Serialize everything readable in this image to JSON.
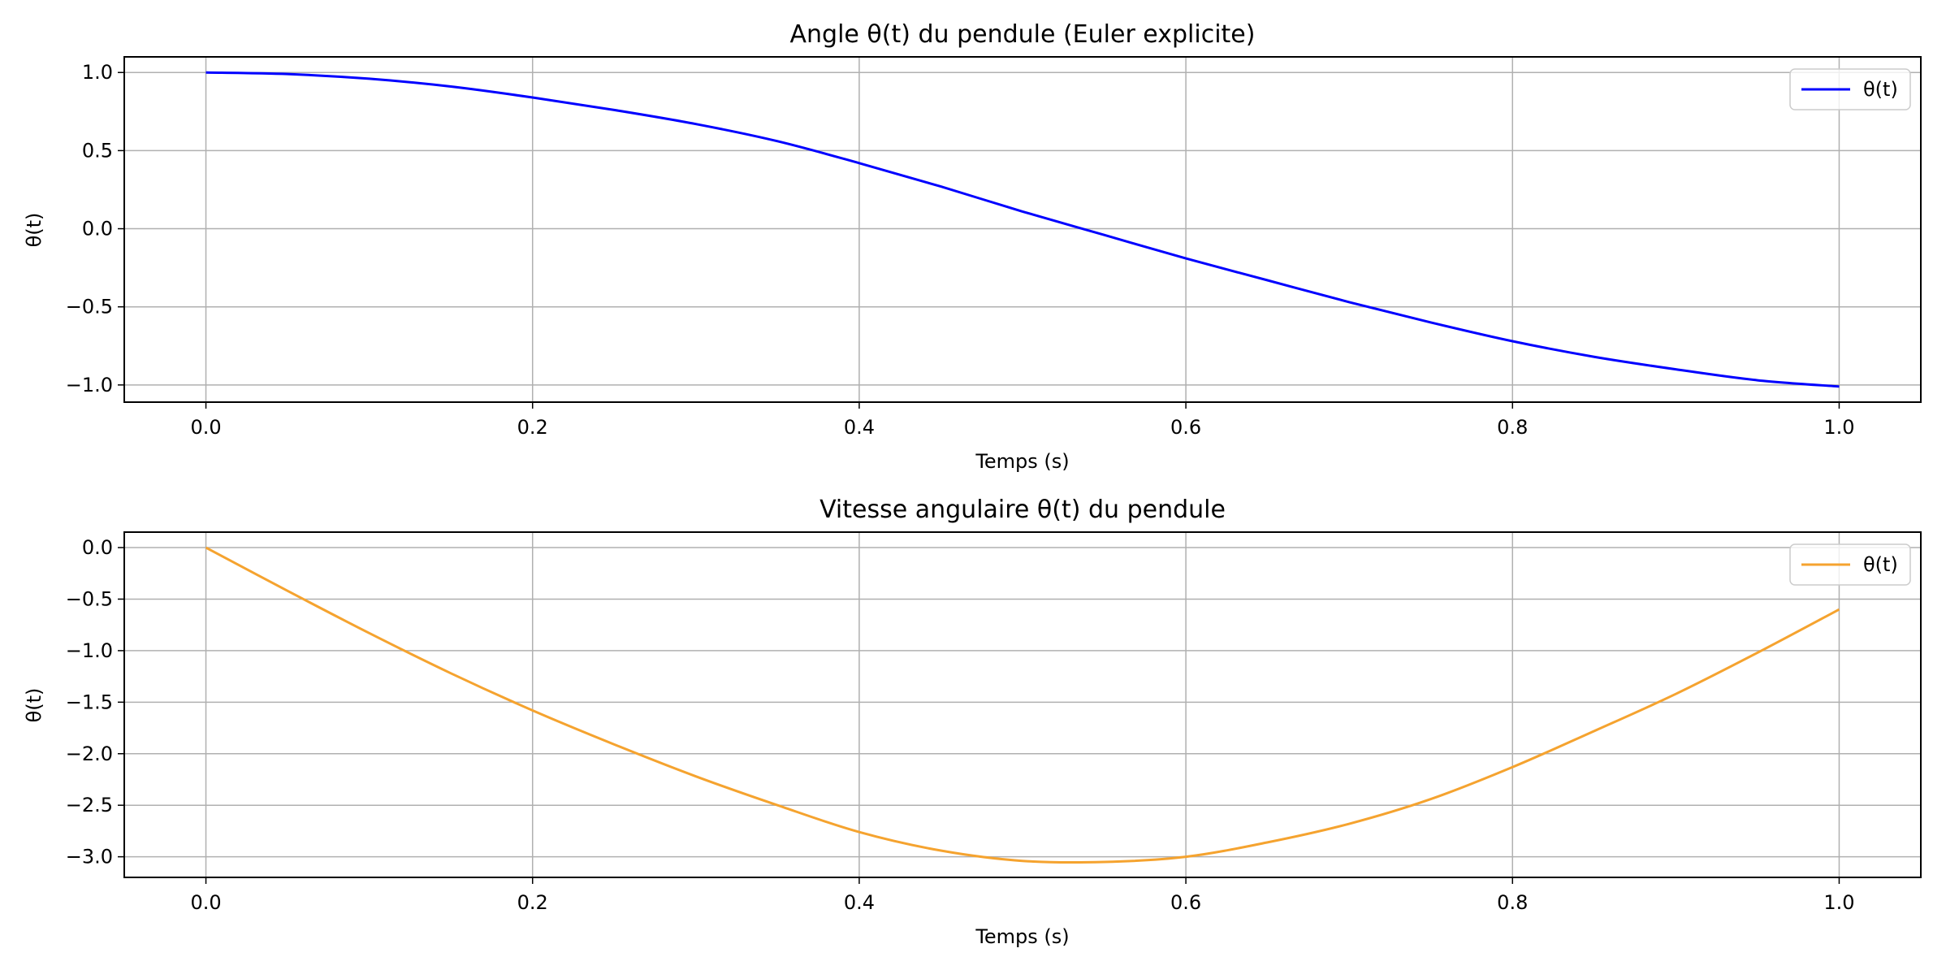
{
  "colors": {
    "background": "#ffffff",
    "grid": "#b0b0b0",
    "axis": "#000000",
    "legend_border": "#cccccc"
  },
  "chart_data": [
    {
      "type": "line",
      "title": "Angle θ(t) du pendule (Euler explicite)",
      "xlabel": "Temps (s)",
      "ylabel": "θ(t)",
      "xlim": [
        -0.05,
        1.05
      ],
      "ylim": [
        -1.11,
        1.1
      ],
      "xticks": [
        0.0,
        0.2,
        0.4,
        0.6,
        0.8,
        1.0
      ],
      "xtick_labels": [
        "0.0",
        "0.2",
        "0.4",
        "0.6",
        "0.8",
        "1.0"
      ],
      "yticks": [
        1.0,
        0.5,
        0.0,
        -0.5,
        -1.0
      ],
      "ytick_labels": [
        "1.0",
        "0.5",
        "0.0",
        "−0.5",
        "−1.0"
      ],
      "grid": true,
      "legend": "top-right",
      "series": [
        {
          "name": "θ(t)",
          "color": "#0000ff",
          "x": [
            0.0,
            0.05,
            0.1,
            0.15,
            0.2,
            0.25,
            0.3,
            0.35,
            0.4,
            0.45,
            0.5,
            0.55,
            0.6,
            0.65,
            0.7,
            0.75,
            0.8,
            0.85,
            0.9,
            0.95,
            1.0
          ],
          "y": [
            1.0,
            0.99,
            0.96,
            0.91,
            0.84,
            0.76,
            0.67,
            0.56,
            0.42,
            0.27,
            0.11,
            -0.04,
            -0.19,
            -0.33,
            -0.47,
            -0.6,
            -0.72,
            -0.82,
            -0.9,
            -0.97,
            -1.01
          ]
        }
      ]
    },
    {
      "type": "line",
      "title": "Vitesse angulaire θ(t) du pendule",
      "xlabel": "Temps (s)",
      "ylabel": "θ(t)",
      "xlim": [
        -0.05,
        1.05
      ],
      "ylim": [
        -3.2,
        0.15
      ],
      "xticks": [
        0.0,
        0.2,
        0.4,
        0.6,
        0.8,
        1.0
      ],
      "xtick_labels": [
        "0.0",
        "0.2",
        "0.4",
        "0.6",
        "0.8",
        "1.0"
      ],
      "yticks": [
        0.0,
        -0.5,
        -1.0,
        -1.5,
        -2.0,
        -2.5,
        -3.0
      ],
      "ytick_labels": [
        "0.0",
        "−0.5",
        "−1.0",
        "−1.5",
        "−2.0",
        "−2.5",
        "−3.0"
      ],
      "grid": true,
      "legend": "top-right",
      "series": [
        {
          "name": "θ(t)",
          "color": "#f5a32f",
          "x": [
            0.0,
            0.05,
            0.1,
            0.15,
            0.2,
            0.25,
            0.3,
            0.35,
            0.4,
            0.45,
            0.5,
            0.55,
            0.6,
            0.65,
            0.7,
            0.75,
            0.8,
            0.85,
            0.9,
            0.95,
            1.0
          ],
          "y": [
            0.0,
            -0.42,
            -0.83,
            -1.22,
            -1.58,
            -1.91,
            -2.22,
            -2.5,
            -2.76,
            -2.94,
            -3.04,
            -3.05,
            -3.0,
            -2.86,
            -2.68,
            -2.44,
            -2.13,
            -1.78,
            -1.42,
            -1.02,
            -0.6
          ]
        }
      ]
    }
  ]
}
